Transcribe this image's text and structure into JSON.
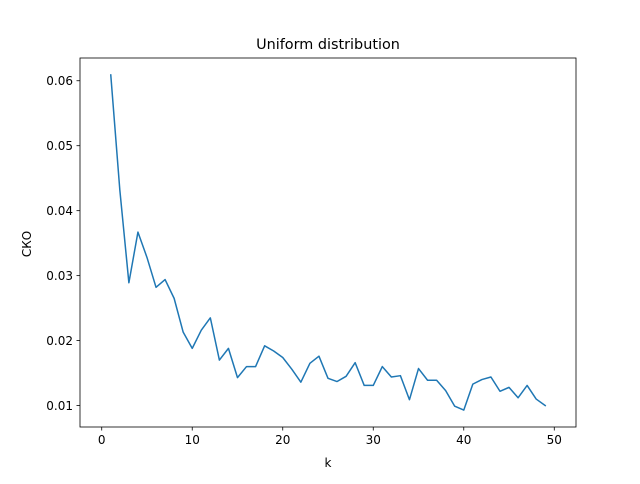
{
  "chart_data": {
    "type": "line",
    "title": "Uniform distribution",
    "xlabel": "k",
    "ylabel": "СКО",
    "xlim": [
      -2.4,
      52.4
    ],
    "ylim": [
      0.0067,
      0.0635
    ],
    "xticks": [
      0,
      10,
      20,
      30,
      40,
      50
    ],
    "yticks": [
      0.01,
      0.02,
      0.03,
      0.04,
      0.05,
      0.06
    ],
    "grid": false,
    "legend": "none",
    "series": [
      {
        "color": "#1f77b4",
        "x": [
          1,
          2,
          3,
          4,
          5,
          6,
          7,
          8,
          9,
          10,
          11,
          12,
          13,
          14,
          15,
          16,
          17,
          18,
          19,
          20,
          21,
          22,
          23,
          24,
          25,
          26,
          27,
          28,
          29,
          30,
          31,
          32,
          33,
          34,
          35,
          36,
          37,
          38,
          39,
          40,
          41,
          42,
          43,
          44,
          45,
          46,
          47,
          48,
          49
        ],
        "y": [
          0.0609,
          0.0432,
          0.0289,
          0.0367,
          0.0328,
          0.0282,
          0.0294,
          0.0265,
          0.0213,
          0.0188,
          0.0216,
          0.0235,
          0.017,
          0.0188,
          0.0143,
          0.016,
          0.016,
          0.0192,
          0.0184,
          0.0174,
          0.0156,
          0.0136,
          0.0165,
          0.0176,
          0.0142,
          0.0137,
          0.0145,
          0.0166,
          0.0131,
          0.0131,
          0.016,
          0.0144,
          0.0146,
          0.0109,
          0.0157,
          0.0139,
          0.0139,
          0.0123,
          0.0099,
          0.0093,
          0.0133,
          0.014,
          0.0144,
          0.0122,
          0.0128,
          0.0112,
          0.0131,
          0.011,
          0.01
        ]
      }
    ]
  }
}
